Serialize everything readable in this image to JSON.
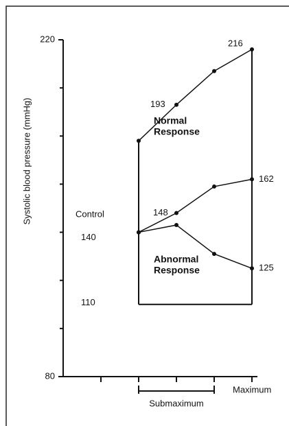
{
  "chart_data": {
    "type": "line",
    "y_label": "Systolic blood pressure (mmHg)",
    "ylim": [
      80,
      220
    ],
    "yticks": [
      80,
      220
    ],
    "minor_yticks": [
      100,
      120,
      140,
      160,
      180,
      200
    ],
    "xlim": [
      0,
      5
    ],
    "xticks": [
      1,
      2,
      3,
      4,
      5
    ],
    "x": [
      0,
      1,
      2,
      3,
      4,
      5
    ],
    "color": "#111111",
    "series": [
      {
        "values": [
          null,
          null,
          178,
          193,
          207,
          216
        ]
      },
      {
        "values": [
          null,
          null,
          140,
          148,
          159,
          162
        ]
      },
      {
        "values": [
          null,
          null,
          140,
          143,
          131,
          125
        ]
      }
    ],
    "bracket_level": 110,
    "annotations": [
      {
        "lines": [
          "Normal",
          "Response"
        ]
      },
      {
        "lines": [
          "Abnormal",
          "Response"
        ]
      },
      {
        "lines": [
          "Control"
        ]
      }
    ],
    "x_annotations": [
      {
        "text": "Submaximum",
        "from": 2,
        "to": 4
      },
      {
        "text": "Maximum",
        "at": 5
      }
    ]
  }
}
